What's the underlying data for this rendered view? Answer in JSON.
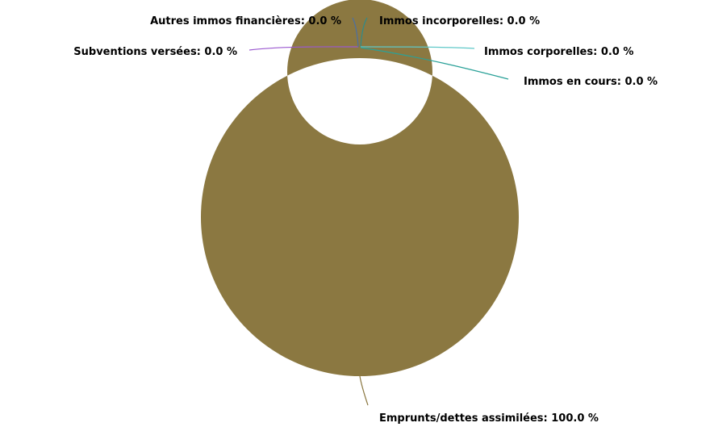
{
  "chart_data": {
    "type": "pie",
    "style": "donut",
    "unit": "%",
    "slices": [
      {
        "label": "Emprunts/dettes assimilées",
        "value": 100.0,
        "display": "Emprunts/dettes assimilées: 100.0 %",
        "color": "#8b7841"
      },
      {
        "label": "Subventions versées",
        "value": 0.0,
        "display": "Subventions versées: 0.0 %",
        "color": "#9b59d0"
      },
      {
        "label": "Autres immos financières",
        "value": 0.0,
        "display": "Autres immos financières: 0.0 %",
        "color": "#4a6fa5"
      },
      {
        "label": "Immos incorporelles",
        "value": 0.0,
        "display": "Immos incorporelles: 0.0 %",
        "color": "#2e8b8b"
      },
      {
        "label": "Immos corporelles",
        "value": 0.0,
        "display": "Immos corporelles: 0.0 %",
        "color": "#5fc8c8"
      },
      {
        "label": "Immos en cours",
        "value": 0.0,
        "display": "Immos en cours: 0.0 %",
        "color": "#2aa198"
      }
    ]
  }
}
